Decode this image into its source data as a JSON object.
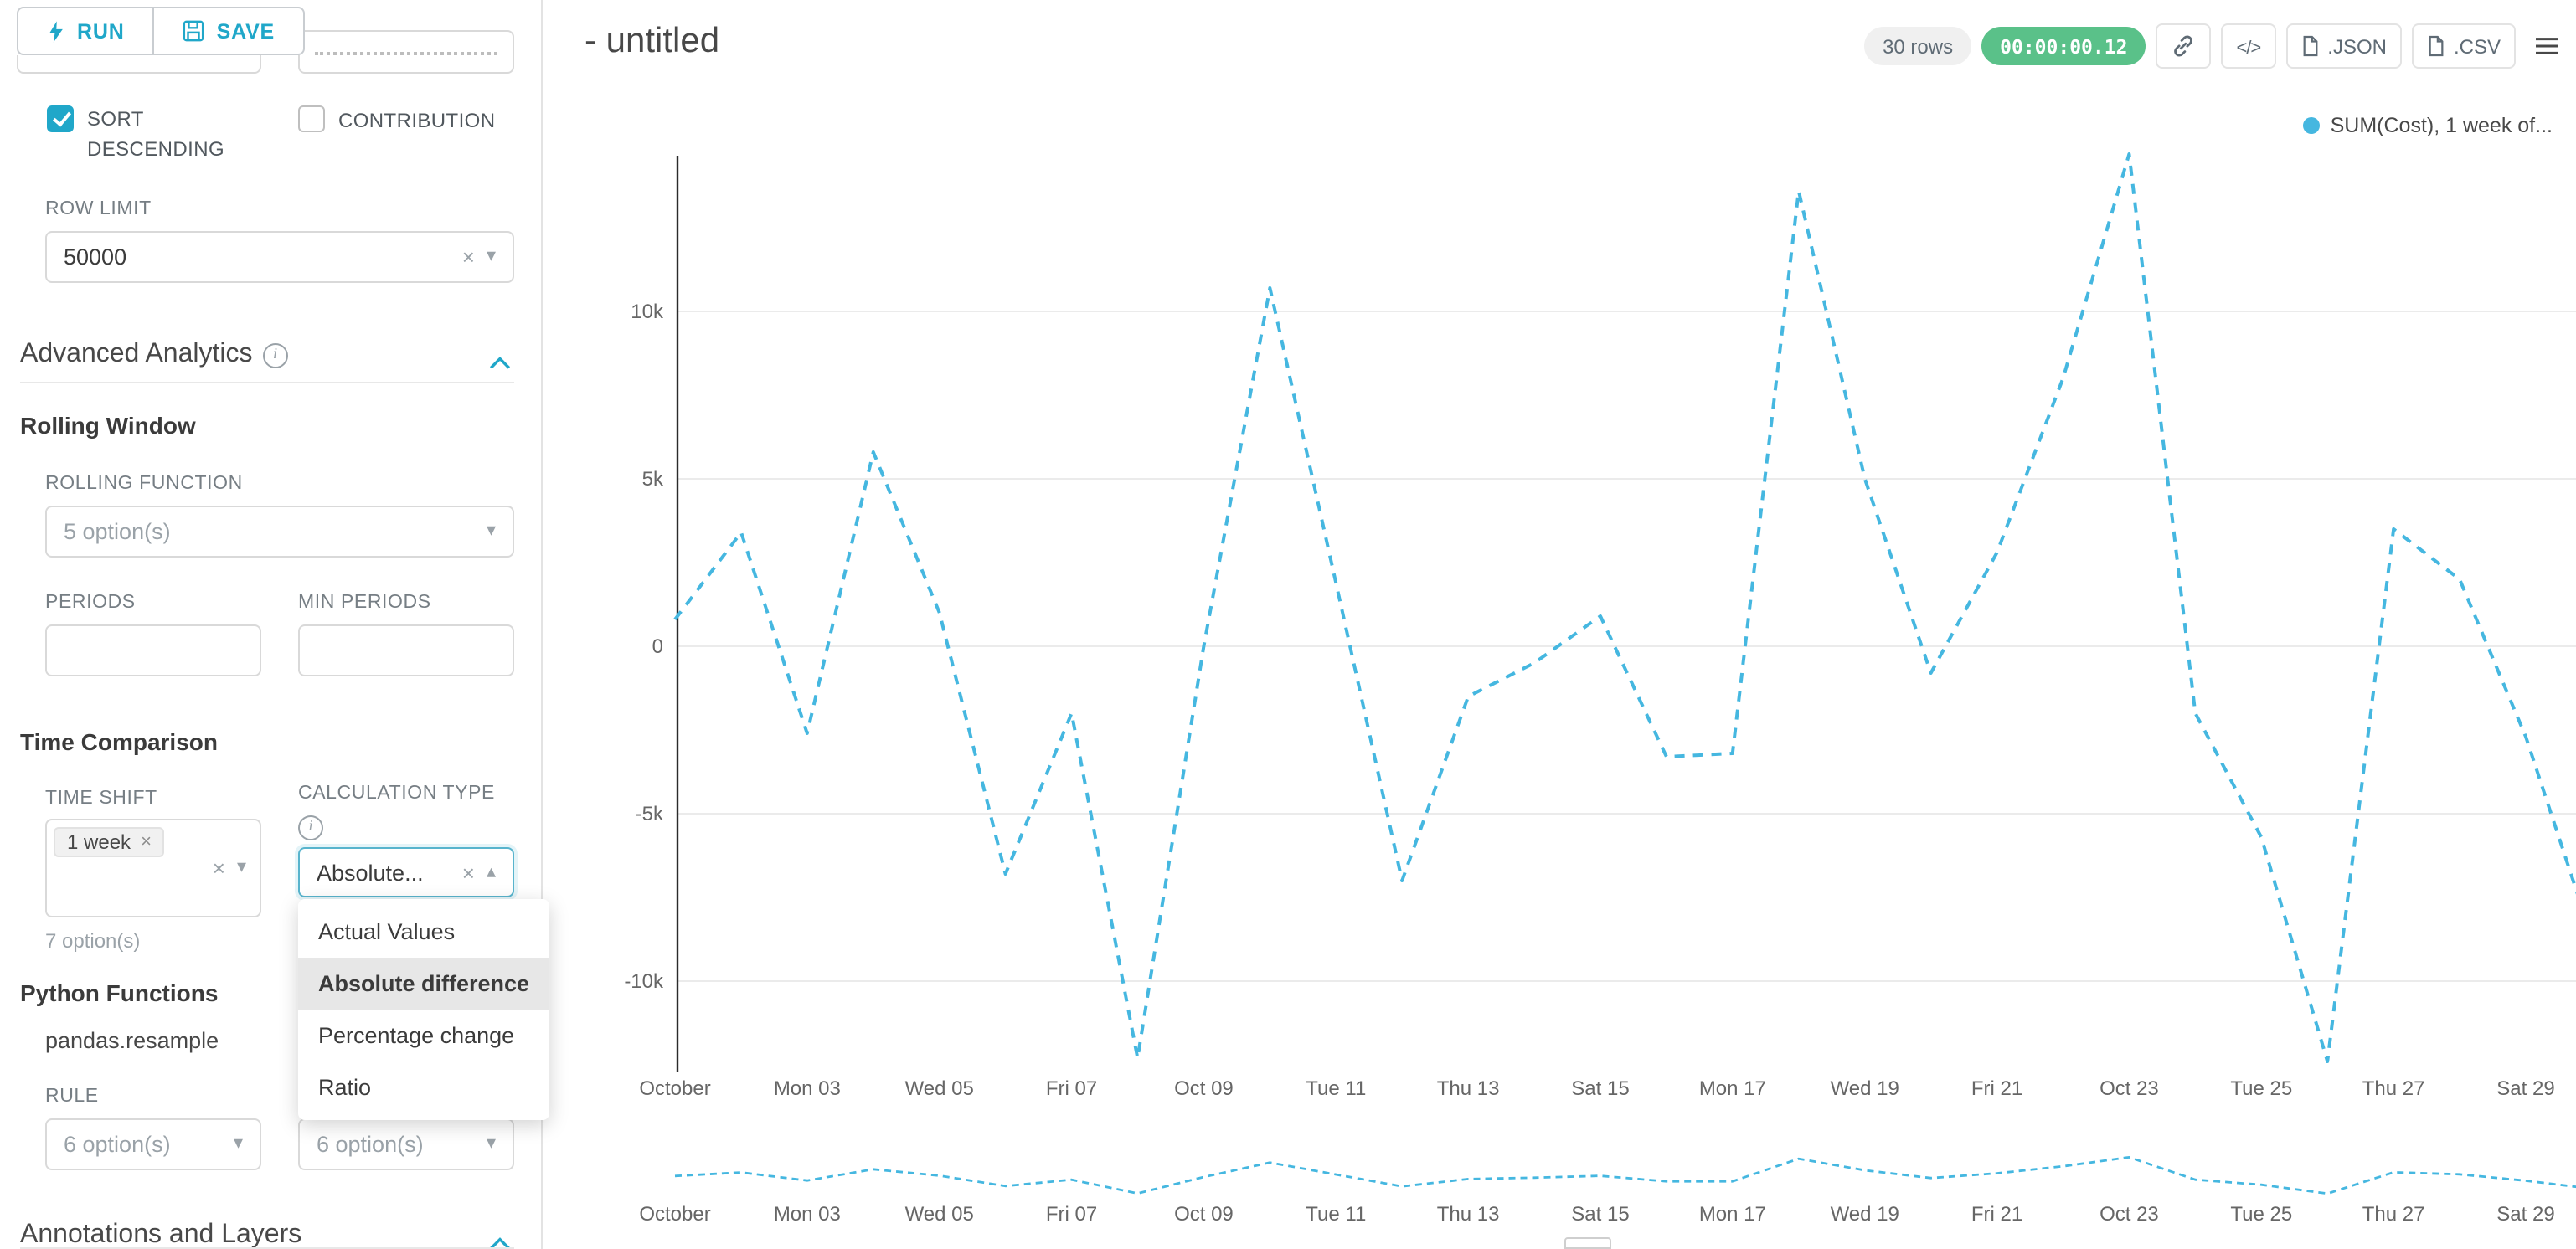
{
  "toolbar": {
    "run_label": "RUN",
    "save_label": "SAVE"
  },
  "sidebar": {
    "sort_descending": {
      "label": "SORT DESCENDING",
      "checked": true
    },
    "contribution": {
      "label": "CONTRIBUTION",
      "checked": false
    },
    "row_limit": {
      "label": "ROW LIMIT",
      "value": "50000"
    },
    "advanced_analytics_title": "Advanced Analytics",
    "rolling_window": {
      "title": "Rolling Window",
      "rolling_function_label": "ROLLING FUNCTION",
      "rolling_function_placeholder": "5 option(s)",
      "periods_label": "PERIODS",
      "min_periods_label": "MIN PERIODS",
      "periods_value": "",
      "min_periods_value": ""
    },
    "time_comparison": {
      "title": "Time Comparison",
      "time_shift_label": "TIME SHIFT",
      "time_shift_tag": "1 week",
      "time_shift_hint": "7 option(s)",
      "calculation_type_label": "CALCULATION TYPE",
      "calculation_type_value": "Absolute...",
      "dropdown_options": [
        "Actual Values",
        "Absolute difference",
        "Percentage change",
        "Ratio"
      ],
      "dropdown_selected": "Absolute difference"
    },
    "python_functions": {
      "title": "Python Functions",
      "function_name": "pandas.resample",
      "rule_label": "RULE",
      "rule_placeholder_1": "6 option(s)",
      "rule_placeholder_2": "6 option(s)"
    },
    "annotations_title": "Annotations and Layers"
  },
  "header": {
    "title": "- untitled",
    "rows_badge": "30 rows",
    "timer_badge": "00:00:00.12",
    "json_label": ".JSON",
    "csv_label": ".CSV"
  },
  "legend_label": "SUM(Cost), 1 week of...",
  "colors": {
    "accent": "#20a7c9",
    "series": "#45b7e0",
    "timer_green": "#5ac189"
  },
  "chart_data": {
    "type": "line",
    "title": "- untitled",
    "xlabel": "",
    "ylabel": "",
    "grid": true,
    "legend_position": "top-right",
    "legend": [
      "SUM(Cost), 1 week of..."
    ],
    "x": [
      "Oct 01",
      "Oct 02",
      "Oct 03",
      "Oct 04",
      "Oct 05",
      "Oct 06",
      "Oct 07",
      "Oct 08",
      "Oct 09",
      "Oct 10",
      "Oct 11",
      "Oct 12",
      "Oct 13",
      "Oct 14",
      "Oct 15",
      "Oct 16",
      "Oct 17",
      "Oct 18",
      "Oct 19",
      "Oct 20",
      "Oct 21",
      "Oct 22",
      "Oct 23",
      "Oct 24",
      "Oct 25",
      "Oct 26",
      "Oct 27",
      "Oct 28",
      "Oct 29",
      "Oct 30"
    ],
    "series": [
      {
        "name": "SUM(Cost), 1 week offset",
        "color": "#45b7e0",
        "line_style": "dashed",
        "values": [
          800,
          3400,
          -2600,
          5800,
          1000,
          -6800,
          -2000,
          -12300,
          0,
          10700,
          1900,
          -7000,
          -1500,
          -500,
          900,
          -3300,
          -3200,
          13600,
          5000,
          -800,
          2800,
          8000,
          14700,
          -2000,
          -5700,
          -12400,
          3500,
          2000,
          -2700,
          -8700
        ]
      }
    ],
    "x_tick_labels": [
      "October",
      "Mon 03",
      "Wed 05",
      "Fri 07",
      "Oct 09",
      "Tue 11",
      "Thu 13",
      "Sat 15",
      "Mon 17",
      "Wed 19",
      "Fri 21",
      "Oct 23",
      "Tue 25",
      "Thu 27",
      "Sat 29"
    ],
    "y_tick_labels": [
      "10k",
      "5k",
      "0",
      "-5k",
      "-10k"
    ],
    "y_tick_values": [
      10000,
      5000,
      0,
      -5000,
      -10000
    ],
    "ylim": [
      -13000,
      15000
    ],
    "has_mini_preview": true
  }
}
